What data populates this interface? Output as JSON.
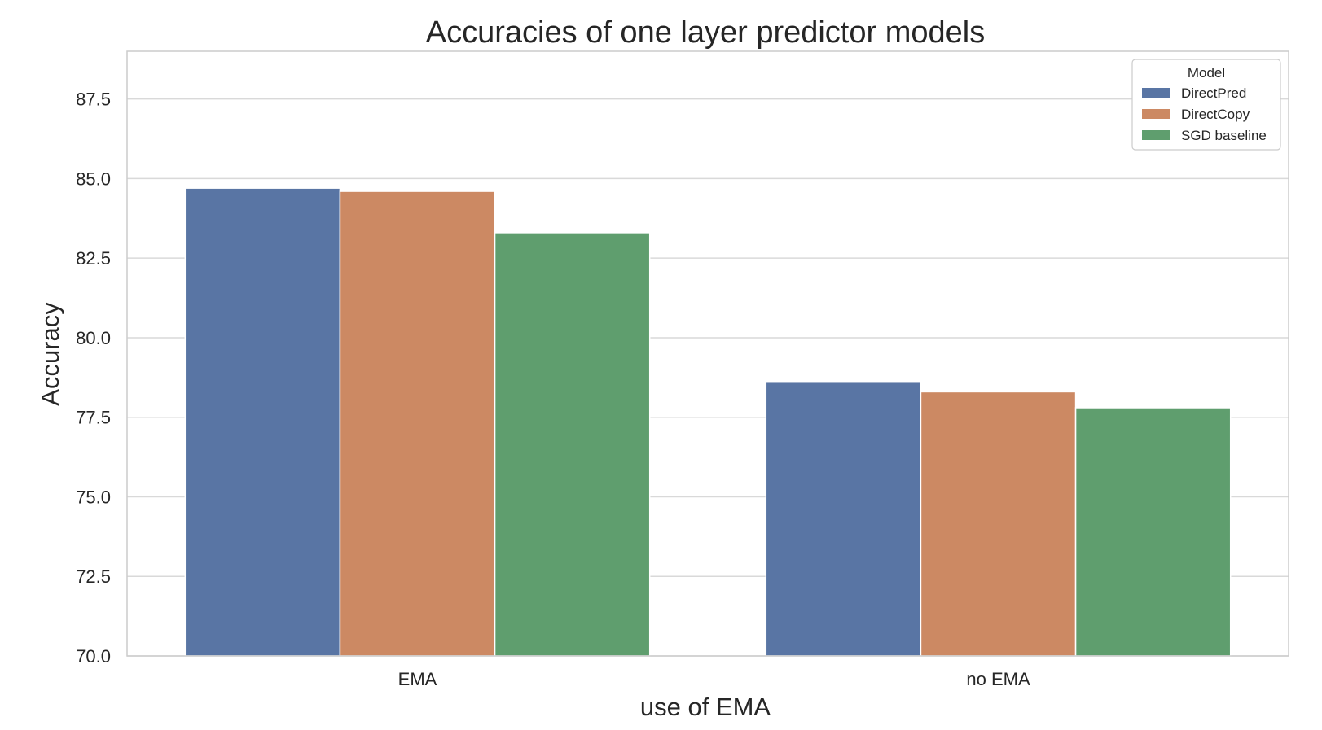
{
  "chart_data": {
    "type": "bar",
    "title": "Accuracies of one layer predictor models",
    "xlabel": "use of EMA",
    "ylabel": "Accuracy",
    "categories": [
      "EMA",
      "no EMA"
    ],
    "series": [
      {
        "name": "DirectPred",
        "values": [
          84.7,
          78.6
        ],
        "color": "#5975a4"
      },
      {
        "name": "DirectCopy",
        "values": [
          84.6,
          78.3
        ],
        "color": "#cc8963"
      },
      {
        "name": "SGD baseline",
        "values": [
          83.3,
          77.8
        ],
        "color": "#5f9e6e"
      }
    ],
    "ylim": [
      70.0,
      89.0
    ],
    "yticks": [
      "70.0",
      "72.5",
      "75.0",
      "77.5",
      "80.0",
      "82.5",
      "85.0",
      "87.5"
    ],
    "ytick_values": [
      70.0,
      72.5,
      75.0,
      77.5,
      80.0,
      82.5,
      85.0,
      87.5
    ],
    "grid": true,
    "legend": {
      "title": "Model",
      "placement": "top-right"
    }
  }
}
